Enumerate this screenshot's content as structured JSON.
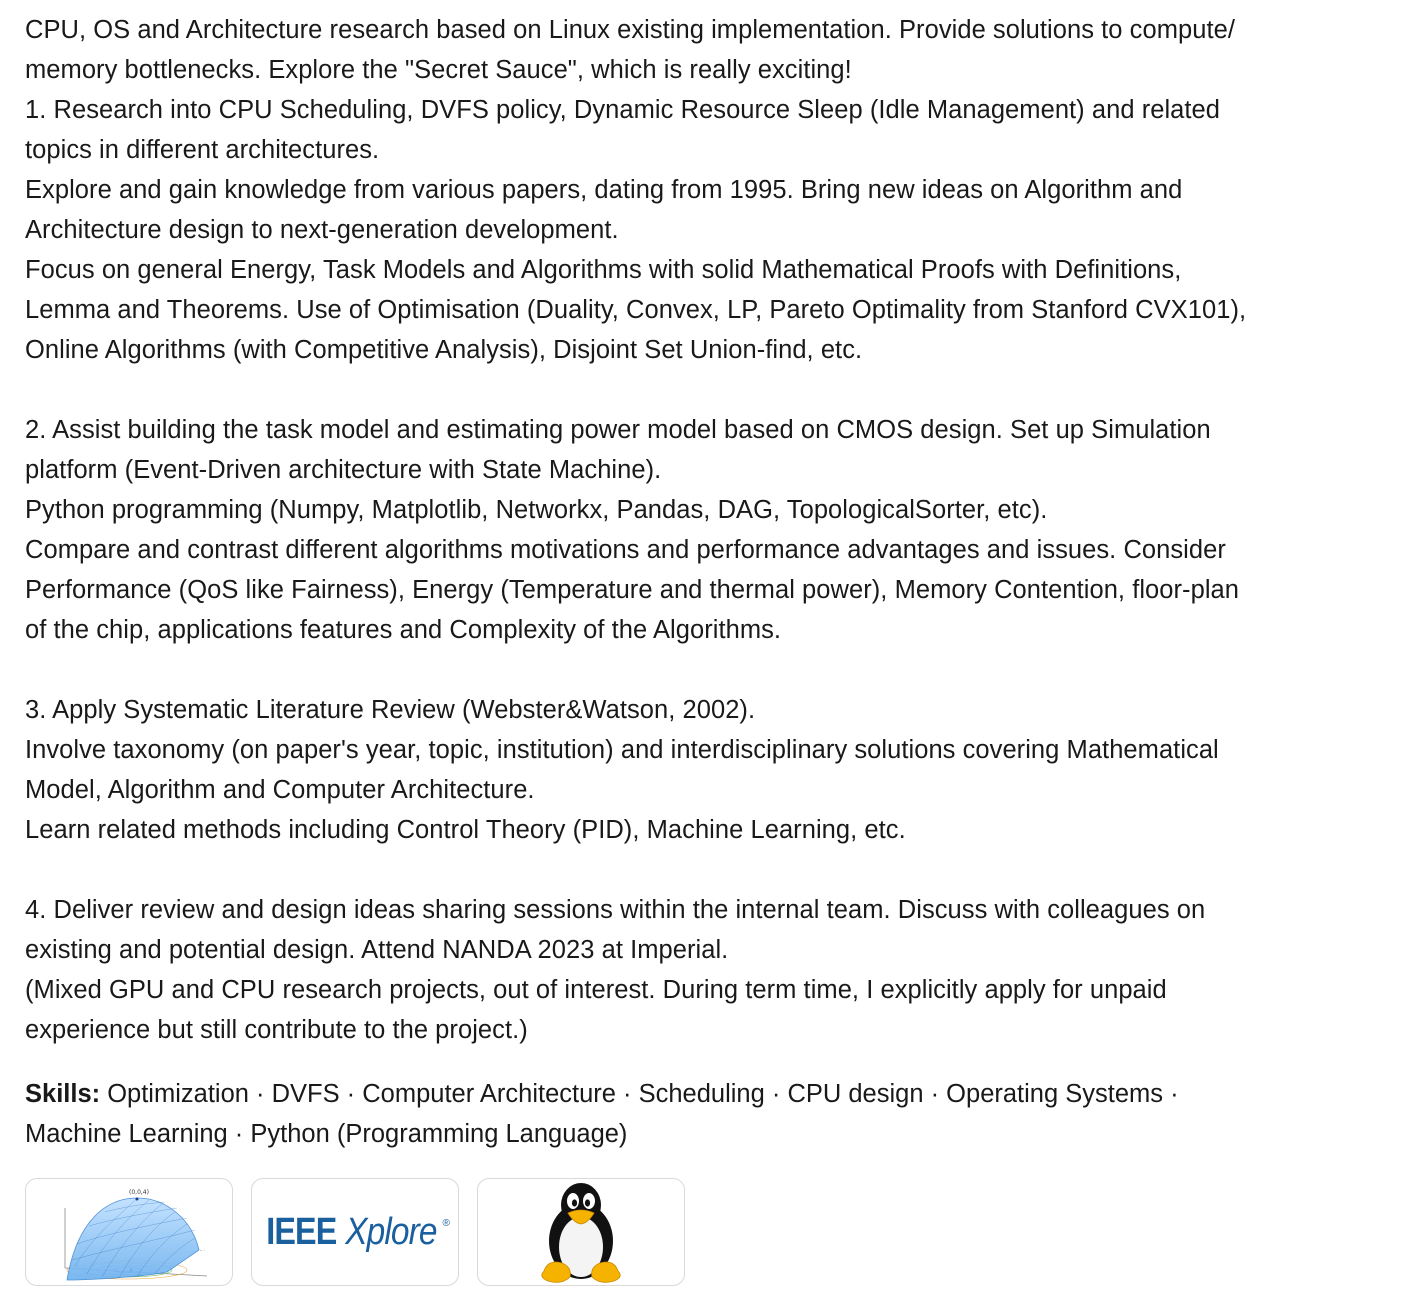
{
  "description": {
    "lines": [
      "CPU, OS and Architecture research based on Linux existing implementation. Provide solutions to compute/",
      "memory bottlenecks. Explore the \"Secret Sauce\", which is really exciting!",
      "1. Research into CPU Scheduling, DVFS policy, Dynamic Resource Sleep (Idle Management) and related",
      "topics in different architectures.",
      "Explore and gain knowledge from various papers, dating from 1995. Bring new ideas on Algorithm and",
      "Architecture design to next-generation development.",
      "Focus on general Energy, Task Models and Algorithms with solid Mathematical Proofs with Definitions,",
      "Lemma and Theorems. Use of Optimisation (Duality, Convex, LP, Pareto Optimality from Stanford CVX101),",
      "Online Algorithms (with Competitive Analysis), Disjoint Set Union-find, etc.",
      "",
      "2. Assist building the task model and estimating power model based on CMOS design. Set up Simulation",
      "platform (Event-Driven architecture with State Machine).",
      "Python programming (Numpy, Matplotlib, Networkx, Pandas, DAG, TopologicalSorter, etc).",
      "Compare and contrast different algorithms motivations and performance advantages and issues. Consider",
      "Performance (QoS like Fairness), Energy (Temperature and thermal power), Memory Contention, floor-plan",
      "of the chip, applications features and Complexity of the Algorithms.",
      "",
      "3. Apply Systematic Literature Review (Webster&Watson, 2002).",
      "Involve taxonomy (on paper's year, topic, institution) and interdisciplinary solutions covering Mathematical",
      "Model, Algorithm and Computer Architecture.",
      "Learn related methods including Control Theory (PID), Machine Learning, etc.",
      "",
      "4. Deliver review and design ideas sharing sessions within the internal team. Discuss with colleagues on",
      "existing and potential design. Attend NANDA 2023 at Imperial.",
      "(Mixed GPU and CPU research projects, out of interest. During term time, I explicitly apply for unpaid",
      "experience but still contribute to the project.)"
    ]
  },
  "skills": {
    "label": "Skills:",
    "line1": " Optimization · DVFS · Computer Architecture · Scheduling · CPU design · Operating Systems ·",
    "line2": "Machine Learning · Python (Programming Language)"
  },
  "media": [
    {
      "icon": "surface-plot-thumbnail",
      "plot_label": "(0,0,4)"
    },
    {
      "icon": "ieee-xplore-logo",
      "logo_main": "IEEE",
      "logo_sub": "Xplore",
      "logo_mark": "®"
    },
    {
      "icon": "linux-tux-icon"
    }
  ],
  "colors": {
    "text": "#1f1f1f",
    "ieee_blue": "#1a5f9e",
    "thumb_border": "#d9d9d9"
  }
}
